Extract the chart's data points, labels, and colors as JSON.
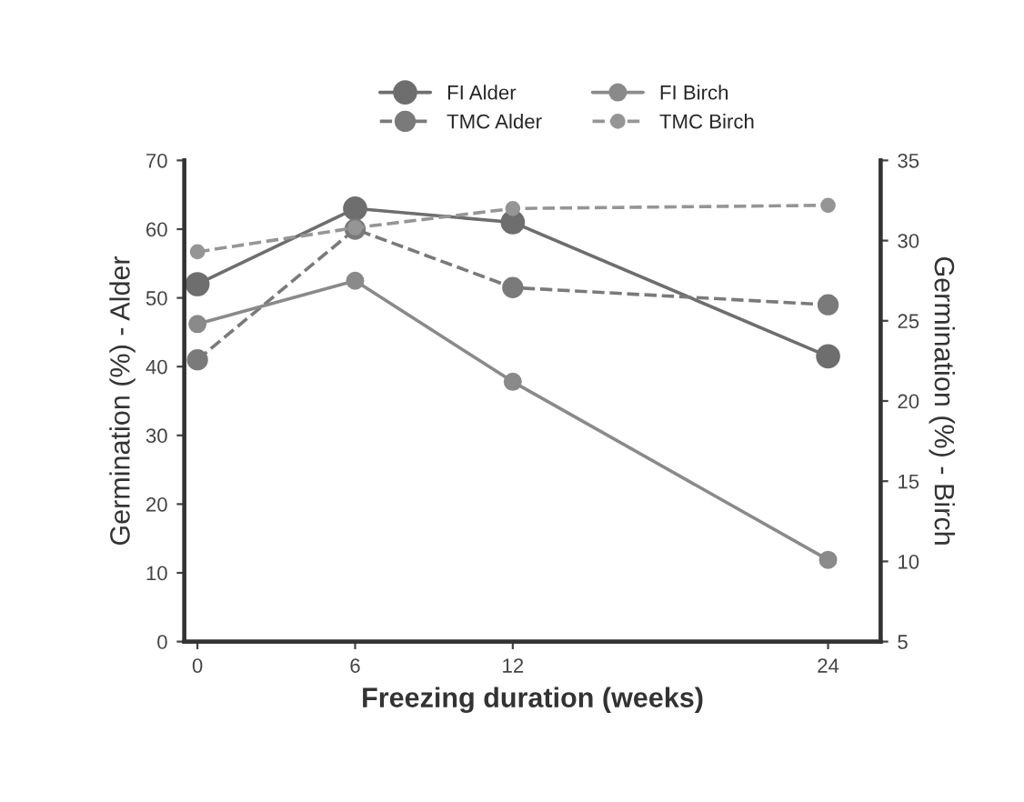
{
  "chart_data": {
    "type": "line",
    "xlabel": "Freezing duration (weeks)",
    "ylabel": "Germination (%) - Alder",
    "y2label": "Germination (%) - Birch",
    "x": [
      0,
      6,
      12,
      24
    ],
    "xlim": [
      -0.5,
      26
    ],
    "xticks": [
      0,
      6,
      12,
      24
    ],
    "ylim": [
      0,
      70
    ],
    "yticks": [
      0,
      10,
      20,
      30,
      40,
      50,
      60,
      70
    ],
    "y2lim": [
      5,
      35
    ],
    "y2ticks": [
      5,
      10,
      15,
      20,
      25,
      30,
      35
    ],
    "marker": "circle",
    "grid": false,
    "legend": "top",
    "series": [
      {
        "name": "FI Alder",
        "color": "#6e6e6e",
        "line_style": "solid",
        "values": [
          52,
          63,
          61,
          41.5
        ]
      },
      {
        "name": "TMC Alder",
        "color": "#7a7a7a",
        "line_style": "dashed",
        "values": [
          41,
          60,
          51.5,
          49
        ]
      },
      {
        "name": "FI Birch",
        "color": "#8a8a8a",
        "line_style": "solid",
        "axis": "y2",
        "values": [
          24.8,
          27.5,
          21.2,
          10.1
        ]
      },
      {
        "name": "TMC Birch",
        "color": "#959595",
        "line_style": "dashed",
        "axis": "y2",
        "values": [
          29.3,
          30.8,
          32,
          32.2
        ]
      }
    ]
  }
}
